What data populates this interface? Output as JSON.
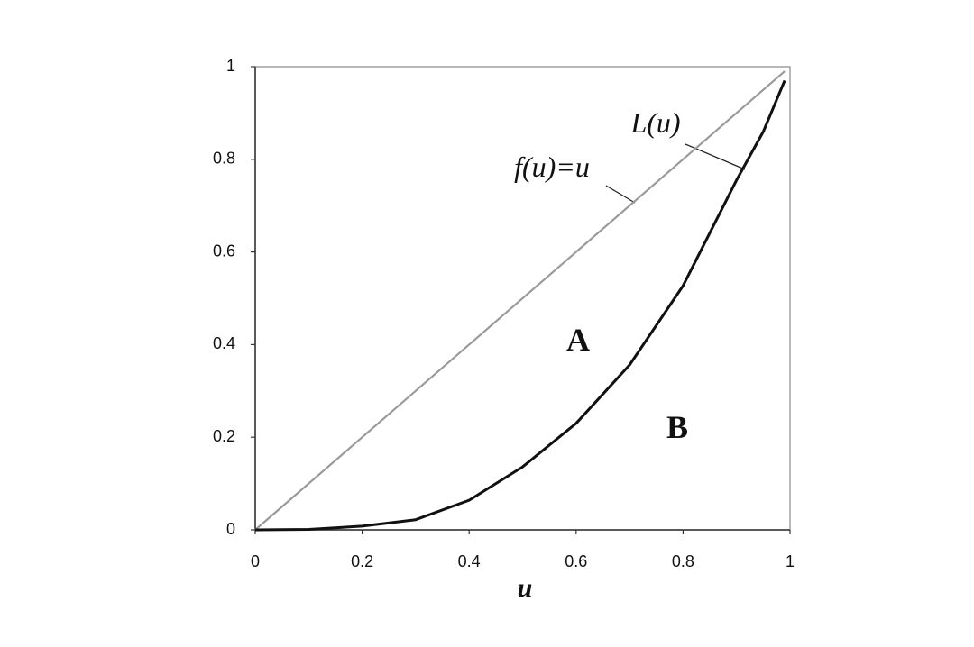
{
  "chart_data": {
    "type": "line",
    "x_label": "u",
    "xlim": [
      0,
      1
    ],
    "ylim": [
      0,
      1
    ],
    "xticks": [
      0,
      0.2,
      0.4,
      0.6,
      0.8,
      1
    ],
    "yticks": [
      0,
      0.2,
      0.4,
      0.6,
      0.8,
      1
    ],
    "grid": false,
    "series": [
      {
        "name": "f(u)=u",
        "color": "#9a9a9a",
        "x": [
          0,
          0.99
        ],
        "values": [
          0,
          0.99
        ]
      },
      {
        "name": "L(u)",
        "color": "#111111",
        "x": [
          0,
          0.1,
          0.2,
          0.3,
          0.4,
          0.5,
          0.6,
          0.7,
          0.8,
          0.9,
          0.95,
          0.99
        ],
        "values": [
          0,
          0.001,
          0.008,
          0.022,
          0.064,
          0.136,
          0.23,
          0.356,
          0.527,
          0.755,
          0.86,
          0.97
        ]
      }
    ],
    "annotations": [
      "A",
      "B"
    ]
  }
}
